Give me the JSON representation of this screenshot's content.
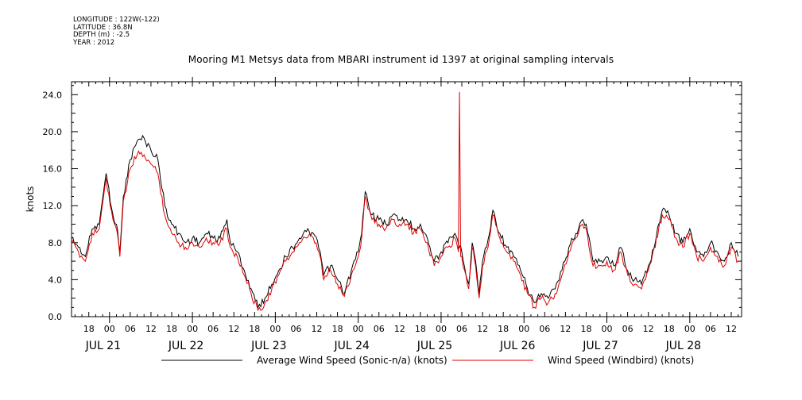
{
  "metadata": {
    "longitude": "LONGITUDE : 122W(-122)",
    "latitude": "LATITUDE : 36.8N",
    "depth": "DEPTH (m) : -2.5",
    "year": "YEAR : 2012"
  },
  "chart_data": {
    "type": "line",
    "title": "Mooring M1 Metsys data from MBARI instrument id 1397 at original sampling intervals",
    "ylabel": "knots",
    "ylim": [
      0,
      25.4
    ],
    "yticks": [
      0.0,
      4.0,
      8.0,
      12.0,
      16.0,
      20.0,
      24.0
    ],
    "ytick_labels": [
      "0.0",
      "4.0",
      "8.0",
      "12.0",
      "16.0",
      "20.0",
      "24.0"
    ],
    "x_start": "2012-07-20T13:00",
    "x_end": "2012-07-28T15:00",
    "hour_ticks": [
      {
        "t": "2012-07-20T18:00",
        "label": "18"
      },
      {
        "t": "2012-07-21T00:00",
        "label": "00"
      },
      {
        "t": "2012-07-21T06:00",
        "label": "06"
      },
      {
        "t": "2012-07-21T12:00",
        "label": "12"
      },
      {
        "t": "2012-07-21T18:00",
        "label": "18"
      },
      {
        "t": "2012-07-22T00:00",
        "label": "00"
      },
      {
        "t": "2012-07-22T06:00",
        "label": "06"
      },
      {
        "t": "2012-07-22T12:00",
        "label": "12"
      },
      {
        "t": "2012-07-22T18:00",
        "label": "18"
      },
      {
        "t": "2012-07-23T00:00",
        "label": "00"
      },
      {
        "t": "2012-07-23T06:00",
        "label": "06"
      },
      {
        "t": "2012-07-23T12:00",
        "label": "12"
      },
      {
        "t": "2012-07-23T18:00",
        "label": "18"
      },
      {
        "t": "2012-07-24T00:00",
        "label": "00"
      },
      {
        "t": "2012-07-24T06:00",
        "label": "06"
      },
      {
        "t": "2012-07-24T12:00",
        "label": "12"
      },
      {
        "t": "2012-07-24T18:00",
        "label": "18"
      },
      {
        "t": "2012-07-25T00:00",
        "label": "00"
      },
      {
        "t": "2012-07-25T06:00",
        "label": "06"
      },
      {
        "t": "2012-07-25T12:00",
        "label": "12"
      },
      {
        "t": "2012-07-25T18:00",
        "label": "18"
      },
      {
        "t": "2012-07-26T00:00",
        "label": "00"
      },
      {
        "t": "2012-07-26T06:00",
        "label": "06"
      },
      {
        "t": "2012-07-26T12:00",
        "label": "12"
      },
      {
        "t": "2012-07-26T18:00",
        "label": "18"
      },
      {
        "t": "2012-07-27T00:00",
        "label": "00"
      },
      {
        "t": "2012-07-27T06:00",
        "label": "06"
      },
      {
        "t": "2012-07-27T12:00",
        "label": "12"
      },
      {
        "t": "2012-07-27T18:00",
        "label": "18"
      },
      {
        "t": "2012-07-28T00:00",
        "label": "00"
      },
      {
        "t": "2012-07-28T06:00",
        "label": "06"
      },
      {
        "t": "2012-07-28T12:00",
        "label": "12"
      }
    ],
    "date_labels": [
      {
        "t": "2012-07-21T00:00",
        "label": "JUL 21"
      },
      {
        "t": "2012-07-22T00:00",
        "label": "JUL 22"
      },
      {
        "t": "2012-07-23T00:00",
        "label": "JUL 23"
      },
      {
        "t": "2012-07-24T00:00",
        "label": "JUL 24"
      },
      {
        "t": "2012-07-25T00:00",
        "label": "JUL 25"
      },
      {
        "t": "2012-07-26T00:00",
        "label": "JUL 26"
      },
      {
        "t": "2012-07-27T00:00",
        "label": "JUL 27"
      },
      {
        "t": "2012-07-28T00:00",
        "label": "JUL 28"
      }
    ],
    "series": [
      {
        "name": "Average Wind Speed (Sonic-n/a) (knots)",
        "color": "#000000",
        "points": [
          [
            "2012-07-20T13:00",
            8.5
          ],
          [
            "2012-07-20T15:00",
            7.5
          ],
          [
            "2012-07-20T17:00",
            6.5
          ],
          [
            "2012-07-20T19:00",
            9.5
          ],
          [
            "2012-07-20T21:00",
            10.0
          ],
          [
            "2012-07-20T23:00",
            15.5
          ],
          [
            "2012-07-21T01:00",
            11.0
          ],
          [
            "2012-07-21T02:00",
            10.0
          ],
          [
            "2012-07-21T03:00",
            7.0
          ],
          [
            "2012-07-21T04:00",
            13.0
          ],
          [
            "2012-07-21T06:00",
            17.0
          ],
          [
            "2012-07-21T08:00",
            19.0
          ],
          [
            "2012-07-21T10:00",
            19.3
          ],
          [
            "2012-07-21T12:00",
            18.0
          ],
          [
            "2012-07-21T14:00",
            17.0
          ],
          [
            "2012-07-21T16:00",
            12.0
          ],
          [
            "2012-07-21T18:00",
            10.0
          ],
          [
            "2012-07-21T20:00",
            9.0
          ],
          [
            "2012-07-21T22:00",
            8.0
          ],
          [
            "2012-07-22T00:00",
            8.5
          ],
          [
            "2012-07-22T02:00",
            8.0
          ],
          [
            "2012-07-22T04:00",
            9.0
          ],
          [
            "2012-07-22T06:00",
            8.5
          ],
          [
            "2012-07-22T08:00",
            8.5
          ],
          [
            "2012-07-22T10:00",
            10.5
          ],
          [
            "2012-07-22T11:00",
            8.0
          ],
          [
            "2012-07-22T13:00",
            7.0
          ],
          [
            "2012-07-22T15:00",
            5.0
          ],
          [
            "2012-07-22T17:00",
            3.0
          ],
          [
            "2012-07-22T19:00",
            1.0
          ],
          [
            "2012-07-22T21:00",
            2.0
          ],
          [
            "2012-07-22T23:00",
            3.5
          ],
          [
            "2012-07-23T01:00",
            5.0
          ],
          [
            "2012-07-23T03:00",
            6.5
          ],
          [
            "2012-07-23T05:00",
            7.5
          ],
          [
            "2012-07-23T07:00",
            8.5
          ],
          [
            "2012-07-23T09:00",
            9.2
          ],
          [
            "2012-07-23T11:00",
            9.0
          ],
          [
            "2012-07-23T13:00",
            7.0
          ],
          [
            "2012-07-23T14:00",
            4.5
          ],
          [
            "2012-07-23T16:00",
            5.5
          ],
          [
            "2012-07-23T18:00",
            4.0
          ],
          [
            "2012-07-23T20:00",
            2.5
          ],
          [
            "2012-07-23T22:00",
            5.0
          ],
          [
            "2012-07-24T00:00",
            7.0
          ],
          [
            "2012-07-24T01:00",
            9.0
          ],
          [
            "2012-07-24T02:00",
            13.5
          ],
          [
            "2012-07-24T04:00",
            11.0
          ],
          [
            "2012-07-24T06:00",
            10.5
          ],
          [
            "2012-07-24T08:00",
            10.0
          ],
          [
            "2012-07-24T10:00",
            11.0
          ],
          [
            "2012-07-24T12:00",
            10.5
          ],
          [
            "2012-07-24T14:00",
            10.5
          ],
          [
            "2012-07-24T16:00",
            9.5
          ],
          [
            "2012-07-24T18:00",
            10.0
          ],
          [
            "2012-07-24T20:00",
            8.5
          ],
          [
            "2012-07-24T22:00",
            6.0
          ],
          [
            "2012-07-25T00:00",
            7.0
          ],
          [
            "2012-07-25T02:00",
            8.0
          ],
          [
            "2012-07-25T04:00",
            9.0
          ],
          [
            "2012-07-25T06:00",
            7.0
          ],
          [
            "2012-07-25T08:00",
            3.5
          ],
          [
            "2012-07-25T09:00",
            8.0
          ],
          [
            "2012-07-25T10:00",
            6.0
          ],
          [
            "2012-07-25T11:00",
            2.5
          ],
          [
            "2012-07-25T12:00",
            6.0
          ],
          [
            "2012-07-25T14:00",
            9.0
          ],
          [
            "2012-07-25T15:00",
            11.5
          ],
          [
            "2012-07-25T17:00",
            9.0
          ],
          [
            "2012-07-25T19:00",
            7.5
          ],
          [
            "2012-07-25T21:00",
            6.5
          ],
          [
            "2012-07-25T23:00",
            5.0
          ],
          [
            "2012-07-26T01:00",
            3.0
          ],
          [
            "2012-07-26T03:00",
            1.5
          ],
          [
            "2012-07-26T05:00",
            2.5
          ],
          [
            "2012-07-26T07:00",
            2.0
          ],
          [
            "2012-07-26T09:00",
            3.0
          ],
          [
            "2012-07-26T11:00",
            5.0
          ],
          [
            "2012-07-26T13:00",
            7.5
          ],
          [
            "2012-07-26T15:00",
            9.0
          ],
          [
            "2012-07-26T17:00",
            10.5
          ],
          [
            "2012-07-26T18:00",
            10.0
          ],
          [
            "2012-07-26T20:00",
            6.0
          ],
          [
            "2012-07-26T22:00",
            6.0
          ],
          [
            "2012-07-27T00:00",
            6.5
          ],
          [
            "2012-07-27T02:00",
            5.5
          ],
          [
            "2012-07-27T04:00",
            7.5
          ],
          [
            "2012-07-27T06:00",
            5.0
          ],
          [
            "2012-07-27T08:00",
            4.0
          ],
          [
            "2012-07-27T10:00",
            3.5
          ],
          [
            "2012-07-27T12:00",
            5.5
          ],
          [
            "2012-07-27T14:00",
            8.0
          ],
          [
            "2012-07-27T15:00",
            10.0
          ],
          [
            "2012-07-27T16:00",
            11.5
          ],
          [
            "2012-07-27T18:00",
            11.0
          ],
          [
            "2012-07-27T20:00",
            9.0
          ],
          [
            "2012-07-27T22:00",
            8.0
          ],
          [
            "2012-07-28T00:00",
            9.5
          ],
          [
            "2012-07-28T02:00",
            7.0
          ],
          [
            "2012-07-28T04:00",
            6.5
          ],
          [
            "2012-07-28T06:00",
            8.0
          ],
          [
            "2012-07-28T08:00",
            7.0
          ],
          [
            "2012-07-28T10:00",
            6.0
          ],
          [
            "2012-07-28T12:00",
            8.0
          ],
          [
            "2012-07-28T14:00",
            6.5
          ]
        ]
      },
      {
        "name": "Wind Speed (Windbird) (knots)",
        "color": "#e00000",
        "points": [
          [
            "2012-07-20T13:00",
            8.0
          ],
          [
            "2012-07-20T15:00",
            7.0
          ],
          [
            "2012-07-20T17:00",
            6.0
          ],
          [
            "2012-07-20T19:00",
            9.0
          ],
          [
            "2012-07-20T21:00",
            9.5
          ],
          [
            "2012-07-20T23:00",
            15.0
          ],
          [
            "2012-07-21T01:00",
            10.5
          ],
          [
            "2012-07-21T02:00",
            9.5
          ],
          [
            "2012-07-21T03:00",
            6.5
          ],
          [
            "2012-07-21T04:00",
            12.5
          ],
          [
            "2012-07-21T06:00",
            16.0
          ],
          [
            "2012-07-21T08:00",
            17.5
          ],
          [
            "2012-07-21T10:00",
            17.5
          ],
          [
            "2012-07-21T12:00",
            16.5
          ],
          [
            "2012-07-21T14:00",
            15.5
          ],
          [
            "2012-07-21T16:00",
            11.0
          ],
          [
            "2012-07-21T18:00",
            9.0
          ],
          [
            "2012-07-21T20:00",
            8.0
          ],
          [
            "2012-07-21T22:00",
            7.5
          ],
          [
            "2012-07-22T00:00",
            8.0
          ],
          [
            "2012-07-22T02:00",
            7.5
          ],
          [
            "2012-07-22T04:00",
            8.5
          ],
          [
            "2012-07-22T06:00",
            8.0
          ],
          [
            "2012-07-22T08:00",
            8.0
          ],
          [
            "2012-07-22T10:00",
            9.5
          ],
          [
            "2012-07-22T11:00",
            7.5
          ],
          [
            "2012-07-22T13:00",
            6.5
          ],
          [
            "2012-07-22T15:00",
            4.5
          ],
          [
            "2012-07-22T17:00",
            2.5
          ],
          [
            "2012-07-22T19:00",
            0.7
          ],
          [
            "2012-07-22T21:00",
            1.5
          ],
          [
            "2012-07-22T23:00",
            3.0
          ],
          [
            "2012-07-23T01:00",
            4.5
          ],
          [
            "2012-07-23T03:00",
            6.0
          ],
          [
            "2012-07-23T05:00",
            7.0
          ],
          [
            "2012-07-23T07:00",
            8.0
          ],
          [
            "2012-07-23T09:00",
            8.5
          ],
          [
            "2012-07-23T11:00",
            8.5
          ],
          [
            "2012-07-23T13:00",
            6.5
          ],
          [
            "2012-07-23T14:00",
            4.0
          ],
          [
            "2012-07-23T16:00",
            5.0
          ],
          [
            "2012-07-23T18:00",
            3.5
          ],
          [
            "2012-07-23T20:00",
            2.2
          ],
          [
            "2012-07-23T22:00",
            4.5
          ],
          [
            "2012-07-24T00:00",
            6.5
          ],
          [
            "2012-07-24T01:00",
            8.5
          ],
          [
            "2012-07-24T02:00",
            13.0
          ],
          [
            "2012-07-24T04:00",
            10.5
          ],
          [
            "2012-07-24T06:00",
            10.0
          ],
          [
            "2012-07-24T08:00",
            9.5
          ],
          [
            "2012-07-24T10:00",
            10.5
          ],
          [
            "2012-07-24T12:00",
            10.0
          ],
          [
            "2012-07-24T14:00",
            10.0
          ],
          [
            "2012-07-24T16:00",
            9.0
          ],
          [
            "2012-07-24T18:00",
            9.5
          ],
          [
            "2012-07-24T20:00",
            8.0
          ],
          [
            "2012-07-24T22:00",
            5.5
          ],
          [
            "2012-07-25T00:00",
            6.5
          ],
          [
            "2012-07-25T02:00",
            7.5
          ],
          [
            "2012-07-25T04:00",
            8.5
          ],
          [
            "2012-07-25T05:00",
            7.0
          ],
          [
            "2012-07-25T05:20",
            24.3
          ],
          [
            "2012-07-25T05:40",
            6.5
          ],
          [
            "2012-07-25T06:00",
            6.5
          ],
          [
            "2012-07-25T08:00",
            3.0
          ],
          [
            "2012-07-25T09:00",
            7.5
          ],
          [
            "2012-07-25T10:00",
            5.5
          ],
          [
            "2012-07-25T11:00",
            2.0
          ],
          [
            "2012-07-25T12:00",
            5.5
          ],
          [
            "2012-07-25T14:00",
            8.5
          ],
          [
            "2012-07-25T15:00",
            11.0
          ],
          [
            "2012-07-25T17:00",
            8.5
          ],
          [
            "2012-07-25T19:00",
            7.0
          ],
          [
            "2012-07-25T21:00",
            6.0
          ],
          [
            "2012-07-25T23:00",
            4.5
          ],
          [
            "2012-07-26T01:00",
            2.5
          ],
          [
            "2012-07-26T03:00",
            1.0
          ],
          [
            "2012-07-26T05:00",
            2.0
          ],
          [
            "2012-07-26T07:00",
            1.5
          ],
          [
            "2012-07-26T09:00",
            2.5
          ],
          [
            "2012-07-26T11:00",
            4.5
          ],
          [
            "2012-07-26T13:00",
            7.0
          ],
          [
            "2012-07-26T15:00",
            8.5
          ],
          [
            "2012-07-26T17:00",
            10.0
          ],
          [
            "2012-07-26T18:00",
            9.5
          ],
          [
            "2012-07-26T20:00",
            5.5
          ],
          [
            "2012-07-26T22:00",
            5.5
          ],
          [
            "2012-07-27T00:00",
            6.0
          ],
          [
            "2012-07-27T02:00",
            5.0
          ],
          [
            "2012-07-27T04:00",
            7.0
          ],
          [
            "2012-07-27T06:00",
            4.5
          ],
          [
            "2012-07-27T08:00",
            3.5
          ],
          [
            "2012-07-27T10:00",
            3.0
          ],
          [
            "2012-07-27T12:00",
            5.0
          ],
          [
            "2012-07-27T14:00",
            7.5
          ],
          [
            "2012-07-27T15:00",
            9.5
          ],
          [
            "2012-07-27T16:00",
            11.0
          ],
          [
            "2012-07-27T18:00",
            10.5
          ],
          [
            "2012-07-27T20:00",
            8.5
          ],
          [
            "2012-07-27T22:00",
            7.5
          ],
          [
            "2012-07-28T00:00",
            9.0
          ],
          [
            "2012-07-28T02:00",
            6.5
          ],
          [
            "2012-07-28T04:00",
            6.0
          ],
          [
            "2012-07-28T06:00",
            7.5
          ],
          [
            "2012-07-28T08:00",
            6.5
          ],
          [
            "2012-07-28T10:00",
            5.5
          ],
          [
            "2012-07-28T12:00",
            7.5
          ],
          [
            "2012-07-28T14:00",
            6.0
          ]
        ]
      }
    ],
    "legend_placement": "bottom"
  }
}
